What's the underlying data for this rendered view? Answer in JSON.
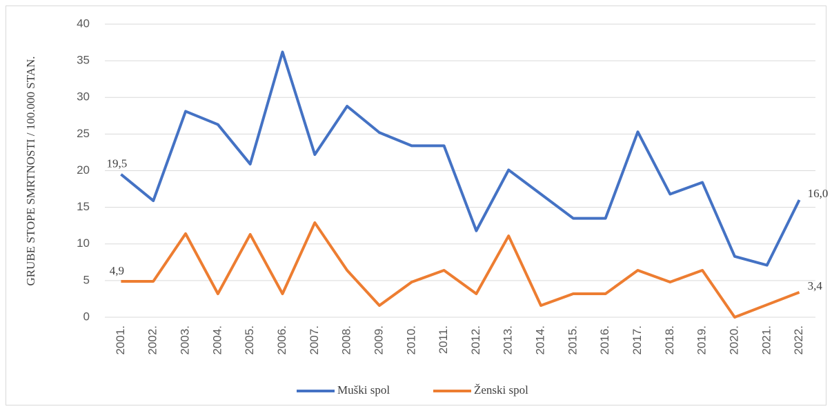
{
  "chart_data": {
    "type": "line",
    "y_label": "GRUBE STOPE SMRTNOSTI / 100.000 STAN.",
    "categories": [
      "2001.",
      "2002.",
      "2003.",
      "2004.",
      "2005.",
      "2006.",
      "2007.",
      "2008.",
      "2009.",
      "2010.",
      "2011.",
      "2012.",
      "2013.",
      "2014.",
      "2015.",
      "2016.",
      "2017.",
      "2018.",
      "2019.",
      "2020.",
      "2021.",
      "2022."
    ],
    "series": [
      {
        "name": "Muški spol",
        "color": "#4472c4",
        "values": [
          19.5,
          15.9,
          28.1,
          26.3,
          20.9,
          36.2,
          22.2,
          28.8,
          25.2,
          23.4,
          23.4,
          11.8,
          20.1,
          16.8,
          13.5,
          13.5,
          25.3,
          16.8,
          18.4,
          8.3,
          7.1,
          16.0
        ],
        "value_labels": [
          "19,5",
          null,
          null,
          null,
          null,
          null,
          null,
          null,
          null,
          null,
          null,
          null,
          null,
          null,
          null,
          null,
          null,
          null,
          null,
          null,
          null,
          "16,0"
        ]
      },
      {
        "name": "Ženski spol",
        "color": "#ed7d31",
        "values": [
          4.9,
          4.9,
          11.4,
          3.2,
          11.3,
          3.2,
          12.9,
          6.4,
          1.6,
          4.8,
          6.4,
          3.2,
          11.1,
          1.6,
          3.2,
          3.2,
          6.4,
          4.8,
          6.4,
          0,
          1.7,
          3.4
        ],
        "value_labels": [
          "4,9",
          null,
          null,
          null,
          null,
          null,
          null,
          null,
          null,
          null,
          null,
          null,
          null,
          null,
          null,
          null,
          null,
          null,
          null,
          null,
          null,
          "3,4"
        ]
      }
    ],
    "ylim": [
      0,
      40
    ],
    "yticks": [
      0,
      5,
      10,
      15,
      20,
      25,
      30,
      35,
      40
    ],
    "grid": true,
    "legend": "bottom"
  }
}
